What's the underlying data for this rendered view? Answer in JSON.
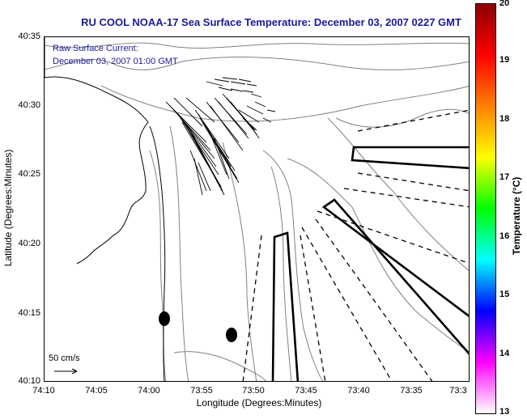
{
  "title": "RU COOL  NOAA-17  Sea Surface Temperature:  December 03, 2007 0227 GMT",
  "current_label": "Raw Surface Current:",
  "current_time": "December 03, 2007 01:00 GMT",
  "scale_label": "50 cm/s",
  "xlabel": "Longitude (Degrees:Minutes)",
  "ylabel": "Latitude (Degrees:Minutes)",
  "xticks": [
    "74:10",
    "74:05",
    "74:00",
    "73:55",
    "73:50",
    "73:45",
    "73:40",
    "73:35",
    "73:3"
  ],
  "yticks": [
    "40:35",
    "40:30",
    "40:25",
    "40:20",
    "40:15",
    "40:10"
  ],
  "colorbar": {
    "label": "Temperature (°C)",
    "ticks": [
      "20",
      "19",
      "18",
      "17",
      "16",
      "15",
      "14",
      "13"
    ],
    "colors": [
      "#8b0000",
      "#ff0000",
      "#ff8000",
      "#ffff00",
      "#00ff00",
      "#00ffff",
      "#0000ff",
      "#ff00ff",
      "#ffffff"
    ]
  },
  "colors": {
    "title": "#1a1a9a",
    "contour": "#808080",
    "coast": "#000000"
  }
}
